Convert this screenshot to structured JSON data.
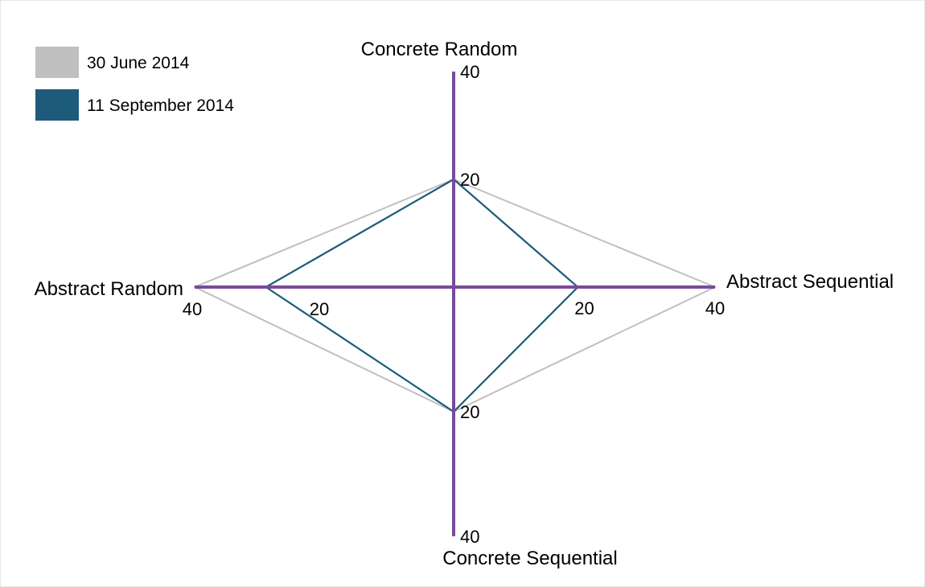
{
  "chart_data": {
    "type": "radar",
    "axes": [
      {
        "key": "cr",
        "label": "Concrete Random",
        "direction": "up"
      },
      {
        "key": "as",
        "label": "Abstract Sequential",
        "direction": "right"
      },
      {
        "key": "cs",
        "label": "Concrete Sequential",
        "direction": "down"
      },
      {
        "key": "ar",
        "label": "Abstract Random",
        "direction": "left"
      }
    ],
    "range": [
      0,
      40
    ],
    "ticks": [
      20,
      40
    ],
    "series": [
      {
        "name": "30 June 2014",
        "color": "#c0c0c0",
        "values": {
          "cr": 20,
          "as": 40,
          "cs": 20,
          "ar": 40
        }
      },
      {
        "name": "11 September 2014",
        "color": "#1e5b7b",
        "values": {
          "cr": 20,
          "as": 19,
          "cs": 20,
          "ar": 29
        }
      }
    ],
    "axis_color": "#7a4a9a",
    "legend_position": "top-left"
  }
}
